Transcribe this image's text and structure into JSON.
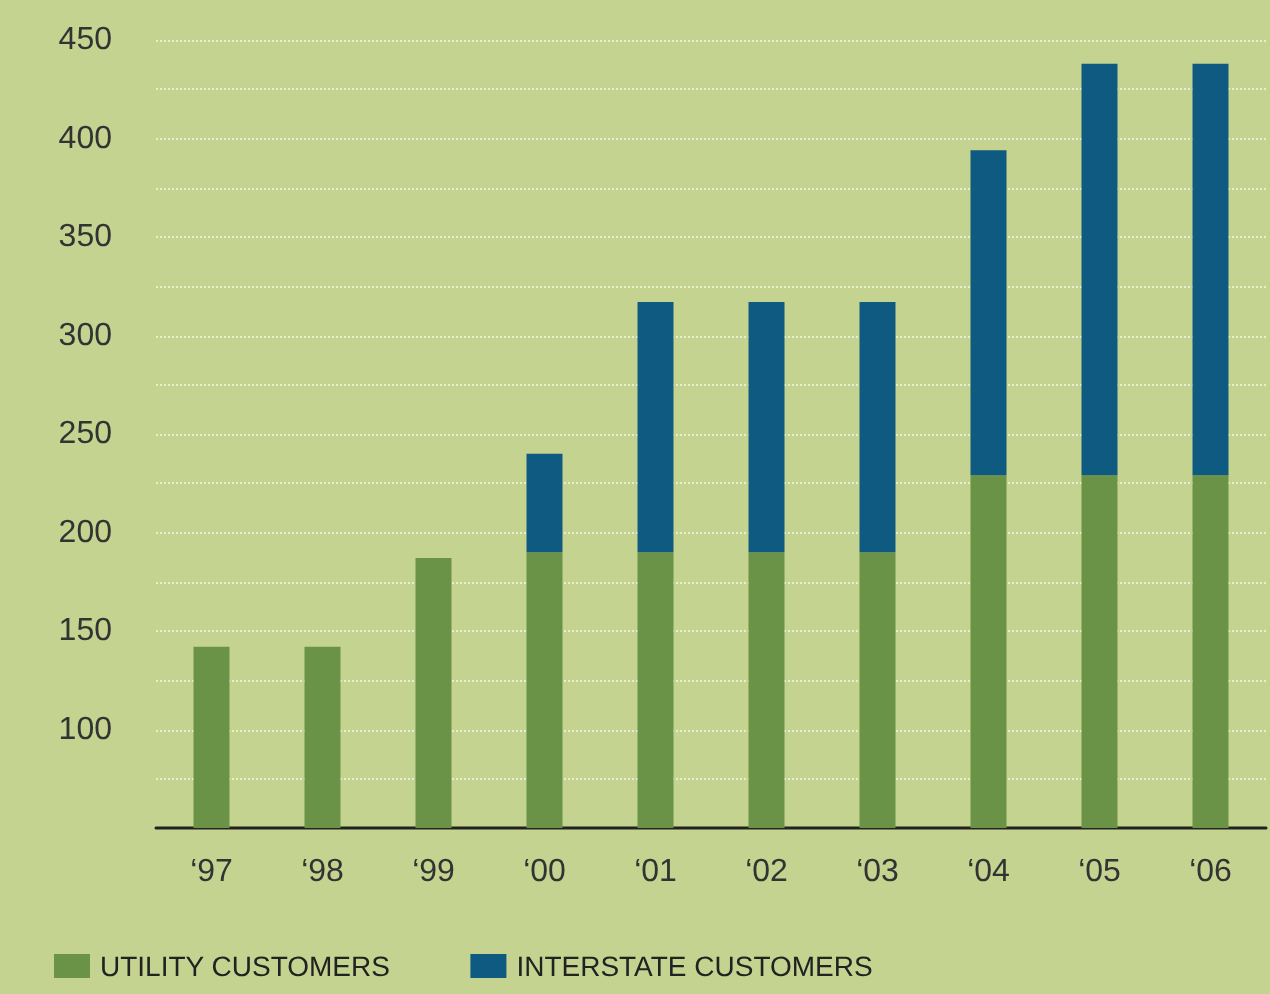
{
  "chart_data": {
    "type": "bar",
    "stacked": true,
    "categories": [
      "‘97",
      "‘98",
      "‘99",
      "‘00",
      "‘01",
      "‘02",
      "‘03",
      "‘04",
      "‘05",
      "‘06"
    ],
    "series": [
      {
        "name": "UTILITY CUSTOMERS",
        "color": "#6b9347",
        "values": [
          142,
          142,
          187,
          190,
          190,
          190,
          190,
          229,
          229,
          229
        ]
      },
      {
        "name": "INTERSTATE CUSTOMERS",
        "color": "#0f5a80",
        "values": [
          null,
          null,
          null,
          50,
          127,
          127,
          127,
          165,
          209,
          209
        ]
      }
    ],
    "ylim": [
      50,
      450
    ],
    "yticks": [
      {
        "value": 75,
        "label": null
      },
      100,
      {
        "value": 125,
        "label": null
      },
      150,
      {
        "value": 175,
        "label": null
      },
      200,
      {
        "value": 225,
        "label": null
      },
      250,
      {
        "value": 275,
        "label": null
      },
      300,
      {
        "value": 325,
        "label": null
      },
      350,
      {
        "value": 375,
        "label": null
      },
      400,
      {
        "value": 425,
        "label": null
      },
      450
    ],
    "grid": "y",
    "legend": "bottom left"
  }
}
